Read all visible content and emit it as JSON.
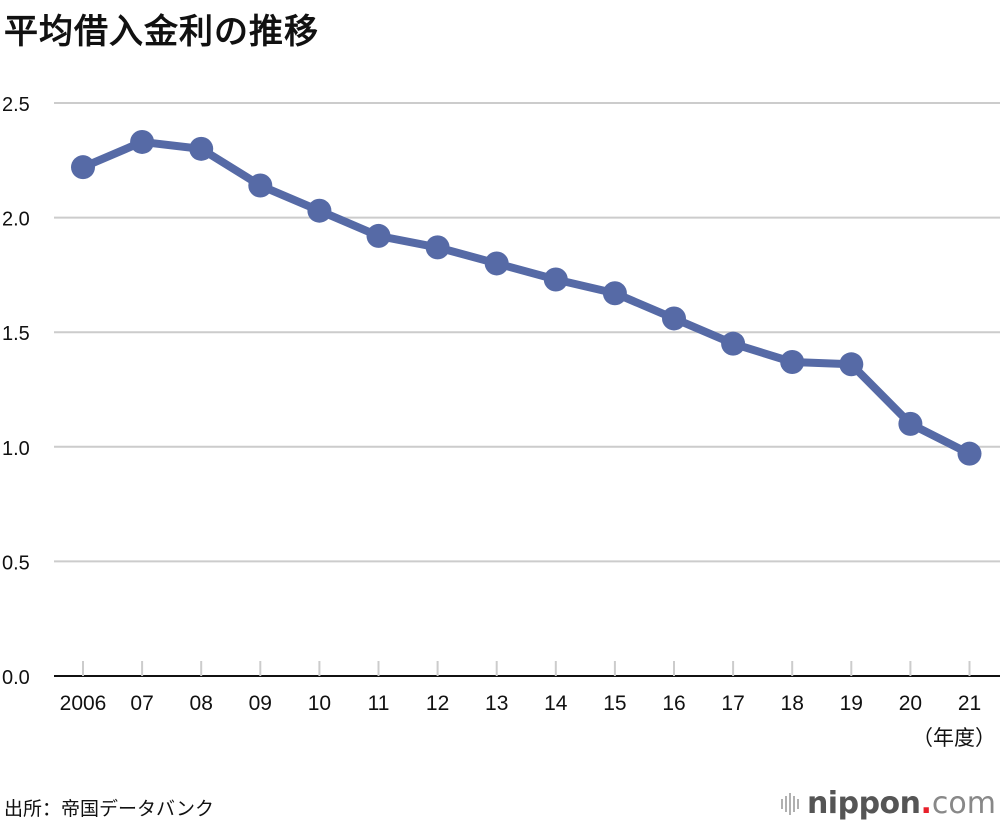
{
  "title": "平均借入金利の推移",
  "unit_label": "（年度）",
  "source": "出所：帝国データバンク",
  "logo": {
    "brand": "nippon",
    "dot": ".",
    "tld": "com",
    "icon": "sound-wave-icon"
  },
  "colors": {
    "series": "#566aa6",
    "grid": "#cccccc",
    "axis": "#111111",
    "logo_dot": "#e8202a"
  },
  "chart_data": {
    "type": "line",
    "title": "平均借入金利の推移",
    "xlabel": "（年度）",
    "ylabel": "",
    "categories": [
      "2006",
      "07",
      "08",
      "09",
      "10",
      "11",
      "12",
      "13",
      "14",
      "15",
      "16",
      "17",
      "18",
      "19",
      "20",
      "21"
    ],
    "series": [
      {
        "name": "平均借入金利",
        "values": [
          2.22,
          2.33,
          2.3,
          2.14,
          2.03,
          1.92,
          1.87,
          1.8,
          1.73,
          1.67,
          1.56,
          1.45,
          1.37,
          1.36,
          1.1,
          0.97
        ]
      }
    ],
    "yticks": [
      "0.0",
      "0.5",
      "1.0",
      "1.5",
      "2.0",
      "2.5"
    ],
    "ylim": [
      0,
      2.5
    ],
    "grid": true,
    "legend": "none",
    "source": "出所：帝国データバンク"
  }
}
